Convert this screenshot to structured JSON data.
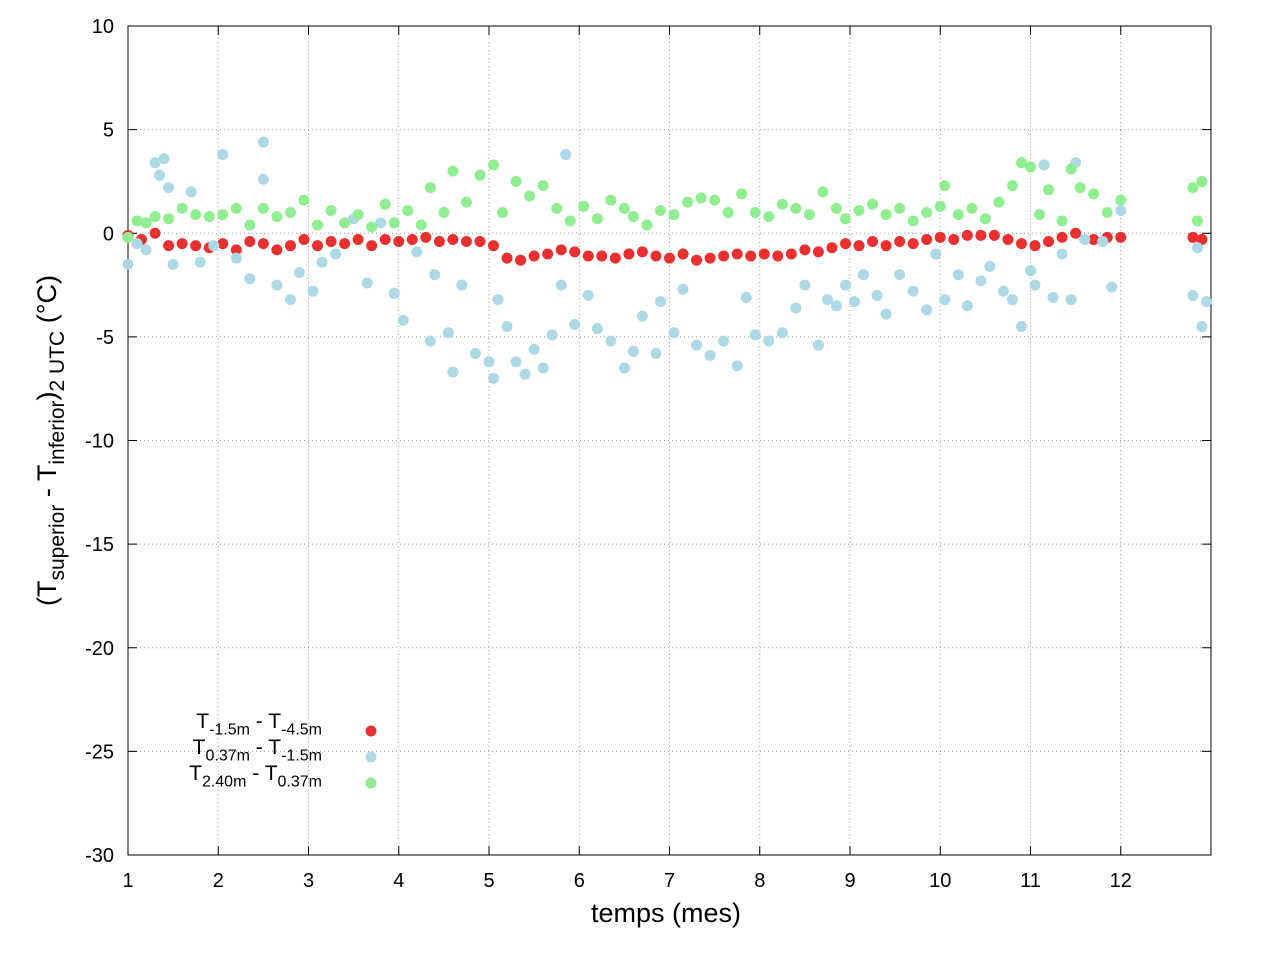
{
  "chart_data": {
    "type": "scatter",
    "xlabel": "temps (mes)",
    "ylabel": [
      {
        "text": "(T"
      },
      {
        "text": "superior",
        "sub": true
      },
      {
        "text": " - T"
      },
      {
        "text": "inferior",
        "sub": true
      },
      {
        "text": ")"
      },
      {
        "text": "2 UTC",
        "sub": true
      },
      {
        "text": " (°C)"
      }
    ],
    "xlim": [
      1,
      13
    ],
    "xticks": [
      1,
      2,
      3,
      4,
      5,
      6,
      7,
      8,
      9,
      10,
      11,
      12
    ],
    "ylim": [
      -30,
      10
    ],
    "yticks": [
      -30,
      -25,
      -20,
      -15,
      -10,
      -5,
      0,
      5,
      10
    ],
    "grid": true,
    "legend": "bottom-left",
    "series": [
      {
        "name": [
          {
            "text": "T"
          },
          {
            "text": "-1.5m",
            "sub": true
          },
          {
            "text": " - T"
          },
          {
            "text": "-4.5m",
            "sub": true
          }
        ],
        "color": "#e83030",
        "x": [
          1.0,
          1.15,
          1.3,
          1.45,
          1.6,
          1.75,
          1.9,
          2.05,
          2.2,
          2.35,
          2.5,
          2.65,
          2.8,
          2.95,
          3.1,
          3.25,
          3.4,
          3.55,
          3.7,
          3.85,
          4.0,
          4.15,
          4.3,
          4.45,
          4.6,
          4.75,
          4.9,
          5.05,
          5.2,
          5.35,
          5.5,
          5.65,
          5.8,
          5.95,
          6.1,
          6.25,
          6.4,
          6.55,
          6.7,
          6.85,
          7.0,
          7.15,
          7.3,
          7.45,
          7.6,
          7.75,
          7.9,
          8.05,
          8.2,
          8.35,
          8.5,
          8.65,
          8.8,
          8.95,
          9.1,
          9.25,
          9.4,
          9.55,
          9.7,
          9.85,
          10.0,
          10.15,
          10.3,
          10.45,
          10.6,
          10.75,
          10.9,
          11.05,
          11.2,
          11.35,
          11.5,
          11.7,
          11.85,
          12.0,
          12.8,
          12.9
        ],
        "values": [
          -0.1,
          -0.3,
          0.0,
          -0.6,
          -0.5,
          -0.6,
          -0.7,
          -0.5,
          -0.8,
          -0.4,
          -0.5,
          -0.8,
          -0.6,
          -0.3,
          -0.6,
          -0.4,
          -0.5,
          -0.3,
          -0.6,
          -0.3,
          -0.4,
          -0.3,
          -0.2,
          -0.4,
          -0.3,
          -0.4,
          -0.4,
          -0.6,
          -1.2,
          -1.3,
          -1.1,
          -1.0,
          -0.8,
          -0.9,
          -1.1,
          -1.1,
          -1.2,
          -1.0,
          -0.9,
          -1.1,
          -1.2,
          -1.0,
          -1.3,
          -1.2,
          -1.1,
          -1.0,
          -1.1,
          -1.0,
          -1.1,
          -1.0,
          -0.8,
          -0.9,
          -0.7,
          -0.5,
          -0.6,
          -0.4,
          -0.6,
          -0.4,
          -0.5,
          -0.3,
          -0.2,
          -0.3,
          -0.1,
          -0.1,
          -0.1,
          -0.3,
          -0.5,
          -0.6,
          -0.4,
          -0.2,
          0.0,
          -0.3,
          -0.2,
          -0.2,
          -0.2,
          -0.3
        ]
      },
      {
        "name": [
          {
            "text": "T"
          },
          {
            "text": "0.37m",
            "sub": true
          },
          {
            "text": " - T"
          },
          {
            "text": "-1.5m",
            "sub": true
          }
        ],
        "color": "#add8e6",
        "x": [
          1.0,
          1.1,
          1.2,
          1.3,
          1.35,
          1.4,
          1.45,
          1.5,
          1.7,
          1.8,
          1.95,
          2.05,
          2.2,
          2.35,
          2.5,
          2.5,
          2.65,
          2.8,
          2.9,
          3.05,
          3.15,
          3.3,
          3.5,
          3.65,
          3.8,
          3.95,
          4.05,
          4.2,
          4.35,
          4.4,
          4.55,
          4.6,
          4.7,
          4.85,
          5.0,
          5.05,
          5.1,
          5.2,
          5.3,
          5.4,
          5.5,
          5.6,
          5.7,
          5.8,
          5.85,
          5.95,
          6.1,
          6.2,
          6.35,
          6.5,
          6.6,
          6.7,
          6.85,
          6.9,
          7.05,
          7.15,
          7.3,
          7.45,
          7.6,
          7.75,
          7.85,
          7.95,
          8.1,
          8.25,
          8.4,
          8.5,
          8.65,
          8.75,
          8.85,
          8.95,
          9.05,
          9.15,
          9.3,
          9.4,
          9.55,
          9.7,
          9.85,
          9.95,
          10.05,
          10.2,
          10.3,
          10.45,
          10.55,
          10.7,
          10.8,
          10.9,
          11.0,
          11.05,
          11.15,
          11.25,
          11.35,
          11.45,
          11.5,
          11.6,
          11.8,
          11.9,
          12.0,
          12.8,
          12.85,
          12.9,
          12.95
        ],
        "values": [
          -1.5,
          -0.5,
          -0.8,
          3.4,
          2.8,
          3.6,
          2.2,
          -1.5,
          2.0,
          -1.4,
          -0.6,
          3.8,
          -1.2,
          -2.2,
          4.4,
          2.6,
          -2.5,
          -3.2,
          -1.9,
          -2.8,
          -1.4,
          -1.0,
          0.7,
          -2.4,
          0.5,
          -2.9,
          -4.2,
          -0.9,
          -5.2,
          -2.0,
          -4.8,
          -6.7,
          -2.5,
          -5.8,
          -6.2,
          -7.0,
          -3.2,
          -4.5,
          -6.2,
          -6.8,
          -5.6,
          -6.5,
          -4.9,
          -2.5,
          3.8,
          -4.4,
          -3.0,
          -4.6,
          -5.2,
          -6.5,
          -5.7,
          -4.0,
          -5.8,
          -3.3,
          -4.8,
          -2.7,
          -5.4,
          -5.9,
          -5.2,
          -6.4,
          -3.1,
          -4.9,
          -5.2,
          -4.8,
          -3.6,
          -2.5,
          -5.4,
          -3.2,
          -3.5,
          -2.5,
          -3.3,
          -2.0,
          -3.0,
          -3.9,
          -2.0,
          -2.8,
          -3.7,
          -1.0,
          -3.2,
          -2.0,
          -3.5,
          -2.3,
          -1.6,
          -2.8,
          -3.2,
          -4.5,
          -1.8,
          -2.5,
          3.3,
          -3.1,
          -1.0,
          -3.2,
          3.4,
          -0.3,
          -0.4,
          -2.6,
          1.1,
          -3.0,
          -0.7,
          -4.5,
          -3.3
        ]
      },
      {
        "name": [
          {
            "text": "T"
          },
          {
            "text": "2.40m",
            "sub": true
          },
          {
            "text": " - T"
          },
          {
            "text": "0.37m",
            "sub": true
          }
        ],
        "color": "#90ee90",
        "x": [
          1.0,
          1.1,
          1.2,
          1.3,
          1.45,
          1.6,
          1.75,
          1.9,
          2.05,
          2.2,
          2.35,
          2.5,
          2.65,
          2.8,
          2.95,
          3.1,
          3.25,
          3.4,
          3.55,
          3.7,
          3.85,
          3.95,
          4.1,
          4.25,
          4.35,
          4.5,
          4.6,
          4.75,
          4.9,
          5.05,
          5.15,
          5.3,
          5.45,
          5.6,
          5.75,
          5.9,
          6.05,
          6.2,
          6.35,
          6.5,
          6.6,
          6.75,
          6.9,
          7.05,
          7.2,
          7.35,
          7.5,
          7.65,
          7.8,
          7.95,
          8.1,
          8.25,
          8.4,
          8.55,
          8.7,
          8.85,
          8.95,
          9.1,
          9.25,
          9.4,
          9.55,
          9.7,
          9.85,
          10.0,
          10.05,
          10.2,
          10.35,
          10.5,
          10.65,
          10.8,
          10.9,
          11.0,
          11.1,
          11.2,
          11.35,
          11.45,
          11.55,
          11.7,
          11.85,
          12.0,
          12.8,
          12.85,
          12.9
        ],
        "values": [
          -0.2,
          0.6,
          0.5,
          0.8,
          0.7,
          1.2,
          0.9,
          0.8,
          0.9,
          1.2,
          0.4,
          1.2,
          0.8,
          1.0,
          1.6,
          0.4,
          1.1,
          0.5,
          0.9,
          0.3,
          1.4,
          0.5,
          1.1,
          0.4,
          2.2,
          1.0,
          3.0,
          1.5,
          2.8,
          3.3,
          1.0,
          2.5,
          1.8,
          2.3,
          1.2,
          0.6,
          1.3,
          0.7,
          1.6,
          1.2,
          0.8,
          0.4,
          1.1,
          0.9,
          1.5,
          1.7,
          1.6,
          1.0,
          1.9,
          1.0,
          0.8,
          1.4,
          1.2,
          0.9,
          2.0,
          1.2,
          0.7,
          1.1,
          1.4,
          0.9,
          1.2,
          0.6,
          1.0,
          1.3,
          2.3,
          0.9,
          1.2,
          0.7,
          1.5,
          2.3,
          3.4,
          3.2,
          0.9,
          2.1,
          0.6,
          3.1,
          2.2,
          1.9,
          1.0,
          1.6,
          2.2,
          0.6,
          2.5
        ]
      }
    ]
  }
}
